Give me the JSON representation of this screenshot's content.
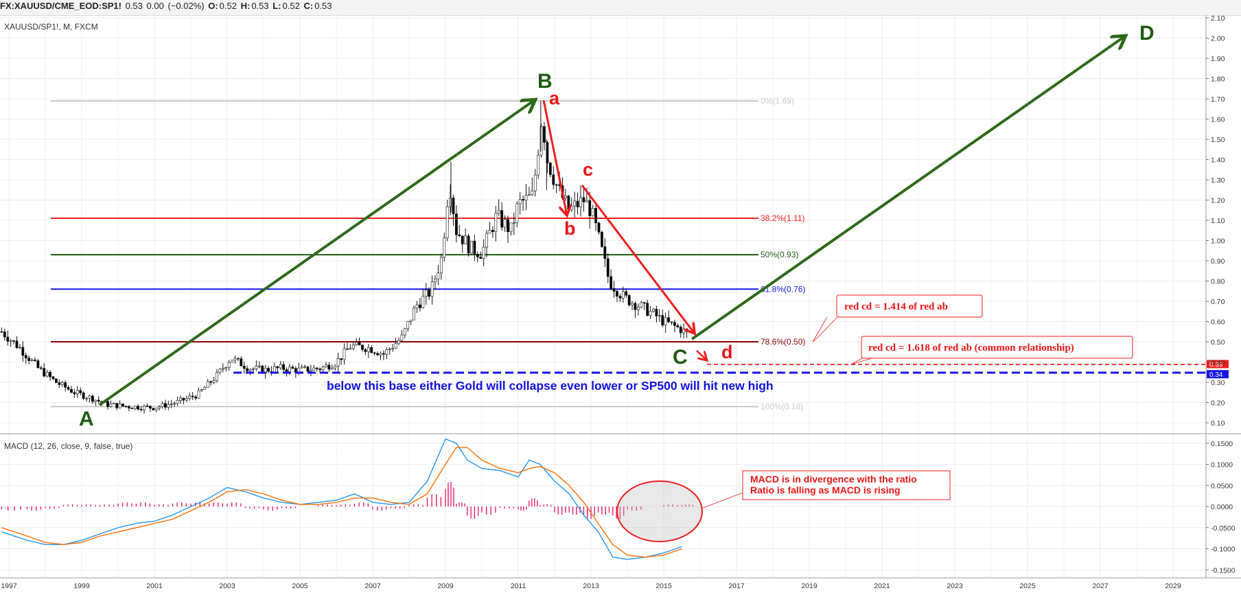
{
  "header": {
    "symbol": "FX:XAUUSD/CME_EOD:SP1!",
    "last": "0.53",
    "change": "0.00",
    "change_pct": "(−0.02%)",
    "o_label": "O:",
    "o_value": "0.52",
    "h_label": "H:",
    "h_value": "0.53",
    "l_label": "L:",
    "l_value": "0.52",
    "c_label": "C:",
    "c_value": "0.53"
  },
  "price_pane": {
    "title": "XAUUSD/SP1!, M, FXCM"
  },
  "macd_pane": {
    "title": "MACD (12, 26, close, 9, false, true)"
  },
  "annotations": {
    "wave_A": "A",
    "wave_B": "B",
    "wave_C": "C",
    "wave_D": "D",
    "wave_a": "a",
    "wave_b": "b",
    "wave_c": "c",
    "wave_d": "d",
    "note1": "red cd = 1.414 of red ab",
    "note2": "red cd = 1.618 of red ab (common relationship)",
    "base_note": "below this base either Gold will collapse even lower or SP500 will hit new high",
    "macd_note_line1": "MACD is in divergence with the ratio",
    "macd_note_line2": "Ratio is falling as MACD is rising"
  },
  "colors": {
    "up_candle": "#ffffff",
    "down_candle": "#000000",
    "macd_line": "#2196f3",
    "signal_line": "#ff6d00",
    "histogram": "#e91e63",
    "green_arrow": "#2c6a1a",
    "red_arrow": "#ee1c1c",
    "base_line": "#1414e6"
  },
  "chart_data": [
    {
      "type": "candlestick",
      "title": "XAUUSD/SP1!, M, FXCM",
      "x_ticks": [
        "1997",
        "1999",
        "2001",
        "2003",
        "2005",
        "2007",
        "2009",
        "2011",
        "2013",
        "2015",
        "2017",
        "2019",
        "2021",
        "2023",
        "2025",
        "2027",
        "2029"
      ],
      "y_ticks": [
        "2.10",
        "2.00",
        "1.90",
        "1.80",
        "1.70",
        "1.60",
        "1.50",
        "1.40",
        "1.30",
        "1.20",
        "1.10",
        "1.00",
        "0.90",
        "0.80",
        "0.70",
        "0.60",
        "0.50",
        "0.40",
        "0.30",
        "0.20",
        "0.10"
      ],
      "ylim": [
        0.05,
        2.1
      ],
      "close_path_approx": [
        [
          1996.8,
          0.55
        ],
        [
          1997.3,
          0.47
        ],
        [
          1997.8,
          0.37
        ],
        [
          1998.3,
          0.3
        ],
        [
          1998.8,
          0.25
        ],
        [
          1999.3,
          0.22
        ],
        [
          1999.7,
          0.19
        ],
        [
          2000.3,
          0.18
        ],
        [
          2001.0,
          0.175
        ],
        [
          2001.6,
          0.2
        ],
        [
          2002.2,
          0.24
        ],
        [
          2002.7,
          0.33
        ],
        [
          2003.1,
          0.42
        ],
        [
          2003.6,
          0.37
        ],
        [
          2004.0,
          0.36
        ],
        [
          2004.5,
          0.37
        ],
        [
          2005.0,
          0.36
        ],
        [
          2005.6,
          0.37
        ],
        [
          2006.0,
          0.4
        ],
        [
          2006.4,
          0.48
        ],
        [
          2006.9,
          0.47
        ],
        [
          2007.3,
          0.44
        ],
        [
          2007.8,
          0.52
        ],
        [
          2008.2,
          0.68
        ],
        [
          2008.6,
          0.75
        ],
        [
          2008.9,
          0.92
        ],
        [
          2009.1,
          1.3
        ],
        [
          2009.3,
          1.05
        ],
        [
          2009.7,
          0.96
        ],
        [
          2010.0,
          0.94
        ],
        [
          2010.4,
          1.12
        ],
        [
          2010.8,
          1.05
        ],
        [
          2011.0,
          1.18
        ],
        [
          2011.4,
          1.22
        ],
        [
          2011.65,
          1.62
        ],
        [
          2011.8,
          1.4
        ],
        [
          2012.1,
          1.25
        ],
        [
          2012.4,
          1.15
        ],
        [
          2012.8,
          1.2
        ],
        [
          2013.0,
          1.15
        ],
        [
          2013.2,
          1.02
        ],
        [
          2013.5,
          0.8
        ],
        [
          2013.9,
          0.72
        ],
        [
          2014.3,
          0.68
        ],
        [
          2014.7,
          0.64
        ],
        [
          2015.0,
          0.6
        ],
        [
          2015.5,
          0.56
        ],
        [
          2015.7,
          0.53
        ]
      ],
      "fibonacci_levels": [
        {
          "label": "0%(1.69)",
          "value": 1.69,
          "color": "#c8c8c8"
        },
        {
          "label": "38.2%(1.11)",
          "value": 1.11,
          "color": "#ee1c1c"
        },
        {
          "label": "50%(0.93)",
          "value": 0.93,
          "color": "#1f5c12"
        },
        {
          "label": "61.8%(0.76)",
          "value": 0.76,
          "color": "#1414e6"
        },
        {
          "label": "78.6%(0.50)",
          "value": 0.5,
          "color": "#8b0000"
        },
        {
          "label": "100%(0.18)",
          "value": 0.18,
          "color": "#c8c8c8"
        }
      ],
      "price_tags": [
        {
          "label": "0.39",
          "value": 0.39,
          "color": "#ee1c1c"
        },
        {
          "label": "0.34",
          "value": 0.34,
          "color": "#1414e6"
        }
      ],
      "points": {
        "A": [
          1999.5,
          0.19
        ],
        "B": [
          2011.5,
          1.69
        ],
        "C": [
          2015.8,
          0.5
        ],
        "D": [
          2027.8,
          2.0
        ],
        "a": [
          2011.7,
          1.69
        ],
        "b": [
          2012.4,
          1.12
        ],
        "c": [
          2012.8,
          1.27
        ],
        "d": [
          2016.1,
          0.39
        ]
      }
    },
    {
      "type": "line",
      "title": "MACD (12, 26, close, 9, false, true)",
      "y_ticks": [
        "0.1500",
        "0.1000",
        "0.0500",
        "0.0000",
        "-0.0500",
        "-0.1000",
        "-0.1500"
      ],
      "ylim": [
        -0.17,
        0.17
      ],
      "x": [
        1996.8,
        1997.5,
        1998.0,
        1998.5,
        1999.0,
        1999.5,
        2000.0,
        2000.5,
        2001.0,
        2001.5,
        2002.0,
        2002.5,
        2003.0,
        2003.5,
        2004.0,
        2004.5,
        2005.0,
        2005.5,
        2006.0,
        2006.5,
        2007.0,
        2007.5,
        2008.0,
        2008.5,
        2009.0,
        2009.3,
        2009.6,
        2010.0,
        2010.5,
        2011.0,
        2011.3,
        2011.6,
        2012.0,
        2012.4,
        2012.8,
        2013.2,
        2013.6,
        2014.0,
        2014.5,
        2015.0,
        2015.5
      ],
      "series": [
        {
          "name": "MACD",
          "values": [
            -0.06,
            -0.08,
            -0.09,
            -0.09,
            -0.08,
            -0.065,
            -0.05,
            -0.04,
            -0.035,
            -0.02,
            0.0,
            0.02,
            0.045,
            0.035,
            0.02,
            0.01,
            0.005,
            0.01,
            0.015,
            0.03,
            0.01,
            0.005,
            0.01,
            0.06,
            0.16,
            0.15,
            0.11,
            0.09,
            0.085,
            0.07,
            0.11,
            0.1,
            0.06,
            0.03,
            -0.02,
            -0.06,
            -0.12,
            -0.125,
            -0.12,
            -0.11,
            -0.095
          ]
        },
        {
          "name": "Signal",
          "values": [
            -0.05,
            -0.07,
            -0.085,
            -0.09,
            -0.085,
            -0.07,
            -0.06,
            -0.05,
            -0.04,
            -0.03,
            -0.01,
            0.01,
            0.035,
            0.04,
            0.03,
            0.015,
            0.005,
            0.005,
            0.01,
            0.02,
            0.02,
            0.01,
            0.005,
            0.03,
            0.1,
            0.14,
            0.14,
            0.11,
            0.09,
            0.08,
            0.09,
            0.095,
            0.08,
            0.05,
            0.01,
            -0.04,
            -0.09,
            -0.115,
            -0.12,
            -0.115,
            -0.1
          ]
        }
      ],
      "histogram_approx": [
        -0.01,
        -0.01,
        -0.005,
        0.005,
        0.005,
        0.005,
        0.01,
        0.01,
        0.005,
        0.01,
        0.01,
        0.01,
        0.01,
        -0.005,
        -0.01,
        -0.005,
        0.0,
        0.005,
        0.005,
        0.01,
        -0.01,
        -0.005,
        0.005,
        0.03,
        0.06,
        0.01,
        -0.03,
        -0.02,
        -0.005,
        -0.01,
        0.02,
        0.005,
        -0.02,
        -0.02,
        -0.03,
        -0.02,
        -0.03,
        -0.01,
        0.0,
        0.005,
        0.005
      ]
    }
  ]
}
